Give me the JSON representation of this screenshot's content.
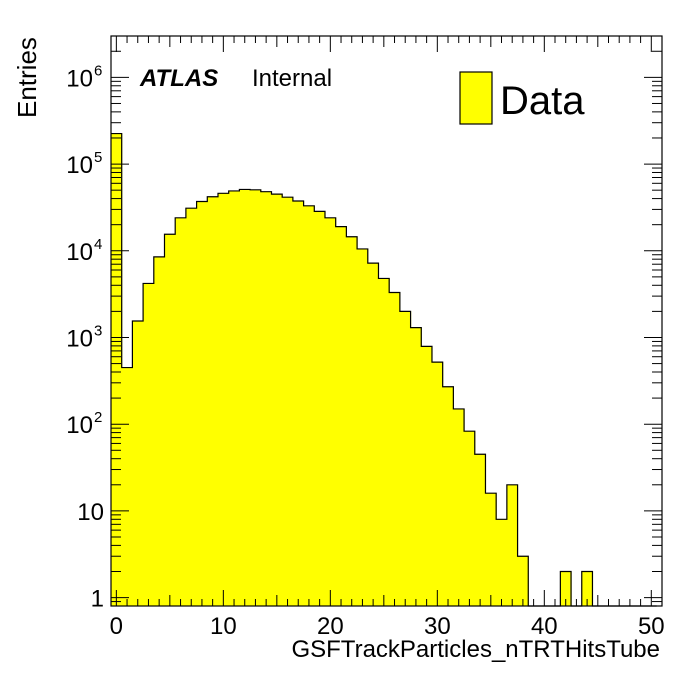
{
  "chart_data": {
    "type": "bar",
    "style": "step-histogram",
    "xlabel": "GSFTrackParticles_nTRTHitsTube",
    "ylabel": "Entries",
    "annotation": {
      "experiment": "ATLAS",
      "status": "Internal"
    },
    "legend": [
      {
        "name": "Data",
        "color": "#ffff00"
      }
    ],
    "legend_placement": "top-right",
    "fill_color": "#ffff00",
    "line_color": "#000000",
    "y_scale": "log",
    "grid": false,
    "xlim": [
      -0.5,
      51
    ],
    "ylim": [
      0.8,
      3000000
    ],
    "x_ticks": [
      {
        "value": 0,
        "label": "0"
      },
      {
        "value": 10,
        "label": "10"
      },
      {
        "value": 20,
        "label": "20"
      },
      {
        "value": 30,
        "label": "30"
      },
      {
        "value": 40,
        "label": "40"
      },
      {
        "value": 50,
        "label": "50"
      }
    ],
    "y_ticks": [
      {
        "value": 1,
        "base": "1",
        "exp": ""
      },
      {
        "value": 10,
        "base": "10",
        "exp": ""
      },
      {
        "value": 100,
        "base": "10",
        "exp": "2"
      },
      {
        "value": 1000,
        "base": "10",
        "exp": "3"
      },
      {
        "value": 10000,
        "base": "10",
        "exp": "4"
      },
      {
        "value": 100000,
        "base": "10",
        "exp": "5"
      },
      {
        "value": 1000000,
        "base": "10",
        "exp": "6"
      }
    ],
    "bin_width": 1,
    "x": [
      0,
      1,
      2,
      3,
      4,
      5,
      6,
      7,
      8,
      9,
      10,
      11,
      12,
      13,
      14,
      15,
      16,
      17,
      18,
      19,
      20,
      21,
      22,
      23,
      24,
      25,
      26,
      27,
      28,
      29,
      30,
      31,
      32,
      33,
      34,
      35,
      36,
      37,
      38,
      39,
      40,
      41,
      42,
      43,
      44,
      45,
      46,
      47,
      48,
      49,
      50
    ],
    "values": [
      225000,
      450,
      1550,
      4200,
      8500,
      15500,
      24000,
      31000,
      37000,
      42000,
      46000,
      49000,
      51000,
      50500,
      48000,
      45000,
      41500,
      37500,
      33000,
      28500,
      24000,
      19000,
      14500,
      10500,
      7200,
      4800,
      3300,
      2000,
      1300,
      790,
      520,
      270,
      150,
      83,
      45,
      16,
      8,
      20,
      3,
      0,
      0,
      0,
      2,
      0,
      2,
      0,
      0,
      0,
      0,
      0,
      0
    ]
  }
}
